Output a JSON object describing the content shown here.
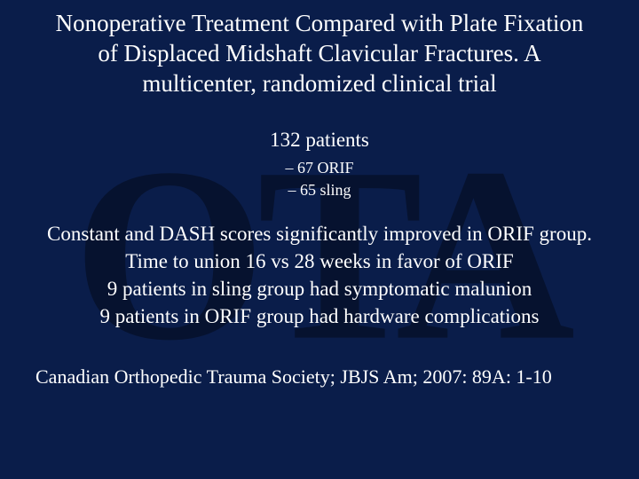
{
  "colors": {
    "background": "#0a1d4a",
    "text": "#ffffff",
    "watermark": "#000000"
  },
  "watermark_text": "OTA",
  "title": "Nonoperative Treatment Compared with Plate Fixation of Displaced Midshaft Clavicular Fractures. A multicenter, randomized clinical trial",
  "patients_line": "132 patients",
  "sub_items": [
    "–  67 ORIF",
    "–  65 sling"
  ],
  "findings": [
    "Constant and DASH scores significantly improved in ORIF group.",
    "Time to union 16 vs 28 weeks in favor of ORIF",
    "9 patients in sling group had symptomatic malunion",
    "9 patients in ORIF group had hardware complications"
  ],
  "citation": "Canadian Orthopedic Trauma Society; JBJS Am; 2007: 89A: 1-10"
}
